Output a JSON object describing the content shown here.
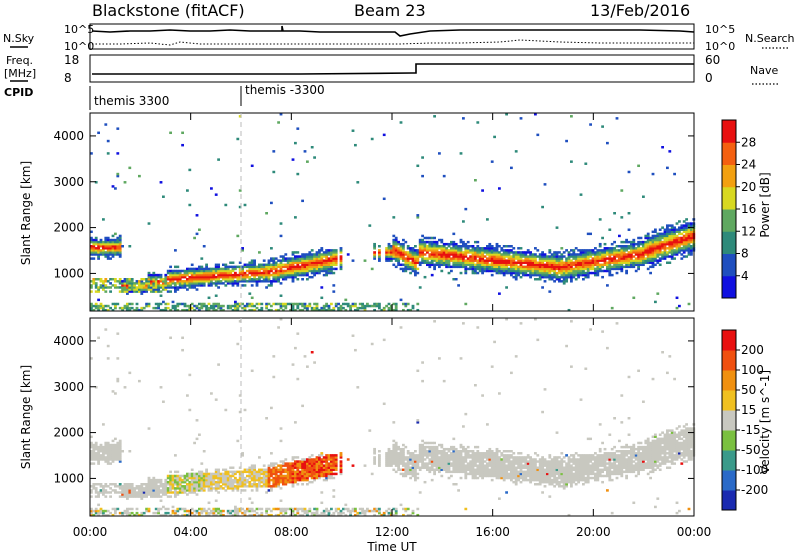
{
  "header": {
    "title": "Blackstone (fitACF)",
    "beam": "Beam 23",
    "date": "13/Feb/2016"
  },
  "noise_panel": {
    "left_label": "N.Sky",
    "right_label": "N.Search",
    "left_ticks": [
      "10^5",
      "10^0"
    ],
    "right_ticks": [
      "10^5",
      "10^0"
    ]
  },
  "freq_panel": {
    "left_label_top": "Freq.",
    "left_label_bottom": "[MHz]",
    "left_ticks": [
      "18",
      "8"
    ],
    "right_label": "Nave",
    "right_ticks": [
      "60",
      "0"
    ]
  },
  "cpid": {
    "label": "CPID",
    "entries": [
      {
        "name": "themis 3300",
        "start_hour": 0
      },
      {
        "name": "themis -3300",
        "start_hour": 6
      }
    ]
  },
  "chart_data": [
    {
      "type": "heatmap",
      "name": "power",
      "ylabel": "Slant Range [km]",
      "xlabel": "Time UT",
      "x_ticks": [
        "00:00",
        "04:00",
        "08:00",
        "12:00",
        "16:00",
        "20:00",
        "00:00"
      ],
      "xlim_hours": [
        0,
        24
      ],
      "y_ticks": [
        1000,
        2000,
        3000,
        4000
      ],
      "ylim": [
        180,
        4500
      ],
      "colorbar_label": "Power [dB]",
      "colorbar_ticks": [
        4,
        8,
        12,
        16,
        20,
        24,
        28
      ],
      "colorbar_range": [
        0,
        30
      ],
      "colors": [
        "#1010e0",
        "#1f4fbf",
        "#2e8a7a",
        "#5fa860",
        "#d8d820",
        "#f2a010",
        "#f46010",
        "#e81010"
      ]
    },
    {
      "type": "heatmap",
      "name": "velocity",
      "ylabel": "Slant Range [km]",
      "xlabel": "Time UT",
      "x_ticks": [
        "00:00",
        "04:00",
        "08:00",
        "12:00",
        "16:00",
        "20:00",
        "00:00"
      ],
      "xlim_hours": [
        0,
        24
      ],
      "y_ticks": [
        1000,
        2000,
        3000,
        4000
      ],
      "ylim": [
        180,
        4500
      ],
      "colorbar_label": "Velocity [m s^-1]",
      "colorbar_ticks": [
        200,
        100,
        50,
        15,
        -15,
        -50,
        -100,
        -200
      ],
      "colors": [
        "#1a2ab0",
        "#2a6ac8",
        "#3a9a8a",
        "#7ac040",
        "#c8c8c0",
        "#f0c020",
        "#f09010",
        "#f05010",
        "#e81010"
      ]
    }
  ],
  "x_axis_label": "Time UT"
}
